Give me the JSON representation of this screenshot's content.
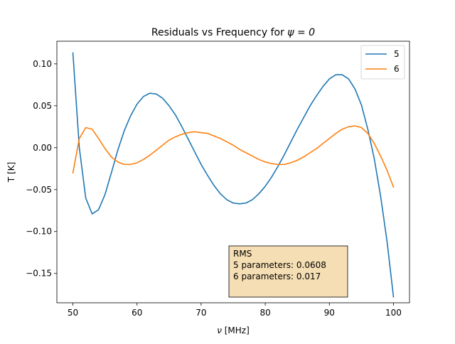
{
  "chart_data": {
    "type": "line",
    "title": "Residuals vs Frequency for ψ = 0",
    "title_main": "Residuals vs Frequency for ",
    "title_math": "ψ = 0",
    "xlabel_symbol": "ν",
    "xlabel_unit": " [MHz]",
    "ylabel": "T [K]",
    "xlim": [
      47.5,
      102.5
    ],
    "ylim": [
      -0.185,
      0.127
    ],
    "xticks": [
      50,
      60,
      70,
      80,
      90,
      100
    ],
    "xtick_labels": [
      "50",
      "60",
      "70",
      "80",
      "90",
      "100"
    ],
    "yticks": [
      -0.15,
      -0.1,
      -0.05,
      0.0,
      0.05,
      0.1
    ],
    "ytick_labels": [
      "−0.15",
      "−0.10",
      "−0.05",
      "0.00",
      "0.05",
      "0.10"
    ],
    "grid": false,
    "legend_position": "top-right",
    "series": [
      {
        "name": "5",
        "color": "#1f77b4",
        "x": [
          50,
          51,
          52,
          53,
          54,
          55,
          56,
          57,
          58,
          59,
          60,
          61,
          62,
          63,
          64,
          65,
          66,
          67,
          68,
          69,
          70,
          71,
          72,
          73,
          74,
          75,
          76,
          77,
          78,
          79,
          80,
          81,
          82,
          83,
          84,
          85,
          86,
          87,
          88,
          89,
          90,
          91,
          92,
          93,
          94,
          95,
          96,
          97,
          98,
          99,
          100
        ],
        "y": [
          0.113,
          0.0,
          -0.06,
          -0.079,
          -0.074,
          -0.056,
          -0.03,
          -0.003,
          0.02,
          0.038,
          0.052,
          0.061,
          0.065,
          0.064,
          0.059,
          0.05,
          0.039,
          0.025,
          0.01,
          -0.005,
          -0.02,
          -0.033,
          -0.045,
          -0.055,
          -0.062,
          -0.066,
          -0.067,
          -0.066,
          -0.062,
          -0.055,
          -0.046,
          -0.035,
          -0.022,
          -0.008,
          0.007,
          0.022,
          0.036,
          0.05,
          0.062,
          0.073,
          0.082,
          0.087,
          0.087,
          0.082,
          0.07,
          0.051,
          0.022,
          -0.013,
          -0.058,
          -0.112,
          -0.178
        ]
      },
      {
        "name": "6",
        "color": "#ff7f0e",
        "x": [
          50,
          51,
          52,
          53,
          54,
          55,
          56,
          57,
          58,
          59,
          60,
          61,
          62,
          63,
          64,
          65,
          66,
          67,
          68,
          69,
          70,
          71,
          72,
          73,
          74,
          75,
          76,
          77,
          78,
          79,
          80,
          81,
          82,
          83,
          84,
          85,
          86,
          87,
          88,
          89,
          90,
          91,
          92,
          93,
          94,
          95,
          96,
          97,
          98,
          99,
          100
        ],
        "y": [
          -0.03,
          0.011,
          0.024,
          0.022,
          0.011,
          -0.001,
          -0.011,
          -0.017,
          -0.02,
          -0.02,
          -0.018,
          -0.014,
          -0.009,
          -0.003,
          0.003,
          0.009,
          0.013,
          0.016,
          0.018,
          0.019,
          0.018,
          0.017,
          0.014,
          0.011,
          0.007,
          0.003,
          -0.002,
          -0.006,
          -0.01,
          -0.014,
          -0.017,
          -0.019,
          -0.02,
          -0.02,
          -0.018,
          -0.015,
          -0.011,
          -0.006,
          -0.001,
          0.005,
          0.011,
          0.017,
          0.022,
          0.025,
          0.026,
          0.024,
          0.017,
          0.005,
          -0.01,
          -0.027,
          -0.047
        ]
      }
    ],
    "annotation": {
      "lines": [
        "RMS",
        "5 parameters: 0.0608",
        "6 parameters: 0.017"
      ],
      "background": "#f5deb3",
      "position": "bottom-center"
    }
  }
}
